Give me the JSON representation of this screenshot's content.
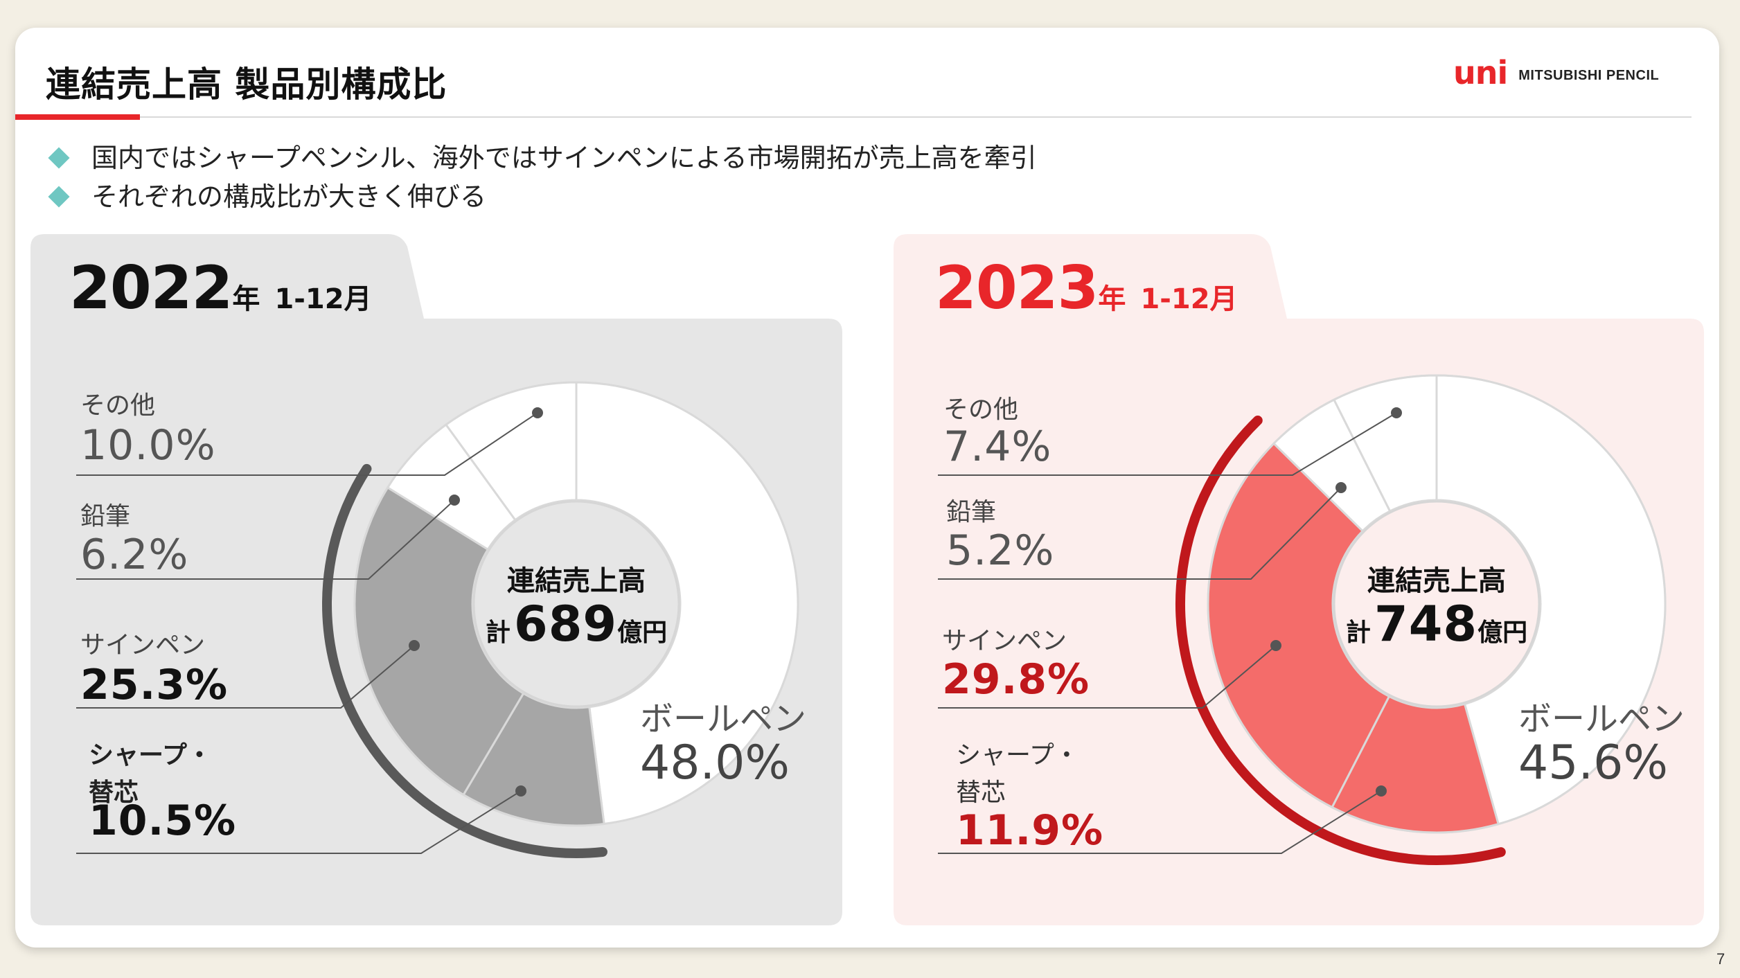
{
  "header": {
    "title": "連結売上高 製品別構成比",
    "logo_mark": "uni",
    "logo_text": "MITSUBISHI PENCIL"
  },
  "bullets": [
    "国内ではシャープペンシル、海外ではサインペンによる市場開拓が売上高を牽引",
    "それぞれの構成比が大きく伸びる"
  ],
  "page_number": "7",
  "colors": {
    "accent_red": "#e8262a",
    "bullet_teal": "#6fc7c2",
    "panel_2022_bg": "#e6e6e6",
    "panel_2023_bg": "#fceeed",
    "highlight_2022": "#a6a6a6",
    "highlight_2023": "#f46c6a",
    "arc_2022": "#595959",
    "arc_2023": "#c0181c"
  },
  "chart_data": [
    {
      "type": "pie",
      "subtype": "donut",
      "year": "2022",
      "year_unit": "年",
      "period": "1-12月",
      "center_title": "連結売上高",
      "center_total_prefix": "計",
      "center_total_value": "689",
      "center_total_unit": "億円",
      "slices": [
        {
          "name": "ボールペン",
          "value": 48.0,
          "label": "48.0%",
          "highlight": false
        },
        {
          "name": "シャープ・替芯",
          "name_lines": [
            "シャープ・",
            "替芯"
          ],
          "value": 10.5,
          "label": "10.5%",
          "highlight": true
        },
        {
          "name": "サインペン",
          "value": 25.3,
          "label": "25.3%",
          "highlight": true
        },
        {
          "name": "鉛筆",
          "value": 6.2,
          "label": "6.2%",
          "highlight": false
        },
        {
          "name": "その他",
          "value": 10.0,
          "label": "10.0%",
          "highlight": false
        }
      ]
    },
    {
      "type": "pie",
      "subtype": "donut",
      "year": "2023",
      "year_unit": "年",
      "period": "1-12月",
      "center_title": "連結売上高",
      "center_total_prefix": "計",
      "center_total_value": "748",
      "center_total_unit": "億円",
      "slices": [
        {
          "name": "ボールペン",
          "value": 45.6,
          "label": "45.6%",
          "highlight": false
        },
        {
          "name": "シャープ・替芯",
          "name_lines": [
            "シャープ・",
            "替芯"
          ],
          "value": 11.9,
          "label": "11.9%",
          "highlight": true
        },
        {
          "name": "サインペン",
          "value": 29.8,
          "label": "29.8%",
          "highlight": true
        },
        {
          "name": "鉛筆",
          "value": 5.2,
          "label": "5.2%",
          "highlight": false
        },
        {
          "name": "その他",
          "value": 7.4,
          "label": "7.4%",
          "highlight": false
        }
      ]
    }
  ]
}
